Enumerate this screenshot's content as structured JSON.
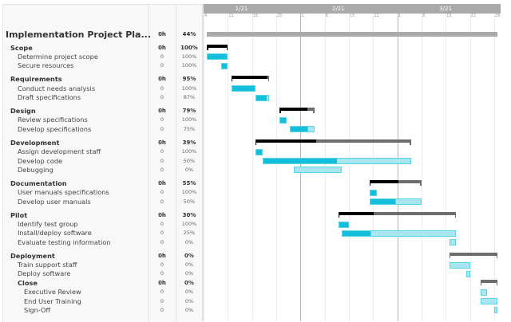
{
  "timeline": {
    "start": "2021-01-04",
    "months": [
      {
        "label": "1/21",
        "date": "2021-01-15"
      },
      {
        "label": "2/21",
        "date": "2021-02-12"
      },
      {
        "label": "3/21",
        "date": "2021-03-15"
      }
    ],
    "month_starts": [
      "2021-02-01",
      "2021-03-01"
    ],
    "days": [
      {
        "label": "4",
        "date": "2021-01-04"
      },
      {
        "label": "11",
        "date": "2021-01-11"
      },
      {
        "label": "18",
        "date": "2021-01-18"
      },
      {
        "label": "25",
        "date": "2021-01-25"
      },
      {
        "label": "1",
        "date": "2021-02-01"
      },
      {
        "label": "8",
        "date": "2021-02-08"
      },
      {
        "label": "15",
        "date": "2021-02-15"
      },
      {
        "label": "22",
        "date": "2021-02-22"
      },
      {
        "label": "1",
        "date": "2021-03-01"
      },
      {
        "label": "8",
        "date": "2021-03-08"
      },
      {
        "label": "15",
        "date": "2021-03-15"
      },
      {
        "label": "22",
        "date": "2021-03-22"
      },
      {
        "label": "29",
        "date": "2021-03-29"
      }
    ]
  },
  "colors": {
    "project": "#aaaaaa",
    "summary_done": "#000000",
    "summary_left": "#6d6d6d",
    "task_done": "#14bfdb",
    "task_left": "#a8e6f0",
    "task_border": "#5fd3e6"
  },
  "tasks": [
    {
      "name": "Implementation Project Pla...",
      "level": 0,
      "hours": "0h",
      "percent": "44%",
      "progress": 44,
      "start": "2021-01-05",
      "end": "2021-03-30"
    },
    {
      "name": "Scope",
      "level": 1,
      "hours": "0h",
      "percent": "100%",
      "progress": 100,
      "start": "2021-01-05",
      "end": "2021-01-11"
    },
    {
      "name": "Determine project scope",
      "level": 2,
      "hours": "0",
      "percent": "100%",
      "progress": 100,
      "start": "2021-01-05",
      "end": "2021-01-11"
    },
    {
      "name": "Secure resources",
      "level": 2,
      "hours": "0",
      "percent": "100%",
      "progress": 100,
      "start": "2021-01-09",
      "end": "2021-01-11"
    },
    {
      "name": "Requirements",
      "level": 1,
      "hours": "0h",
      "percent": "95%",
      "progress": 95,
      "start": "2021-01-12",
      "end": "2021-01-23"
    },
    {
      "name": "Conduct needs analysis",
      "level": 2,
      "hours": "0",
      "percent": "100%",
      "progress": 100,
      "start": "2021-01-12",
      "end": "2021-01-19"
    },
    {
      "name": "Draft specifications",
      "level": 2,
      "hours": "0",
      "percent": "87%",
      "progress": 87,
      "start": "2021-01-19",
      "end": "2021-01-23"
    },
    {
      "name": "Design",
      "level": 1,
      "hours": "0h",
      "percent": "79%",
      "progress": 79,
      "start": "2021-01-26",
      "end": "2021-02-05"
    },
    {
      "name": "Review specifications",
      "level": 2,
      "hours": "0",
      "percent": "100%",
      "progress": 100,
      "start": "2021-01-26",
      "end": "2021-01-28"
    },
    {
      "name": "Develop specifications",
      "level": 2,
      "hours": "0",
      "percent": "75%",
      "progress": 75,
      "start": "2021-01-29",
      "end": "2021-02-05"
    },
    {
      "name": "Development",
      "level": 1,
      "hours": "0h",
      "percent": "39%",
      "progress": 39,
      "start": "2021-01-19",
      "end": "2021-03-05"
    },
    {
      "name": "Assign development staff",
      "level": 2,
      "hours": "0",
      "percent": "100%",
      "progress": 100,
      "start": "2021-01-19",
      "end": "2021-01-21"
    },
    {
      "name": "Develop code",
      "level": 2,
      "hours": "0",
      "percent": "50%",
      "progress": 50,
      "start": "2021-01-21",
      "end": "2021-03-05"
    },
    {
      "name": "Debugging",
      "level": 2,
      "hours": "0",
      "percent": "0%",
      "progress": 0,
      "start": "2021-01-30",
      "end": "2021-02-13"
    },
    {
      "name": "Documentation",
      "level": 1,
      "hours": "0h",
      "percent": "55%",
      "progress": 55,
      "start": "2021-02-21",
      "end": "2021-03-08"
    },
    {
      "name": "User manuals specifications",
      "level": 2,
      "hours": "0",
      "percent": "100%",
      "progress": 100,
      "start": "2021-02-21",
      "end": "2021-02-23"
    },
    {
      "name": "Develop user manuals",
      "level": 2,
      "hours": "0",
      "percent": "50%",
      "progress": 50,
      "start": "2021-02-21",
      "end": "2021-03-08"
    },
    {
      "name": "Pilot",
      "level": 1,
      "hours": "0h",
      "percent": "30%",
      "progress": 30,
      "start": "2021-02-12",
      "end": "2021-03-18"
    },
    {
      "name": "Identify test group",
      "level": 2,
      "hours": "0",
      "percent": "100%",
      "progress": 100,
      "start": "2021-02-12",
      "end": "2021-02-15"
    },
    {
      "name": "Install/deploy software",
      "level": 2,
      "hours": "0",
      "percent": "25%",
      "progress": 25,
      "start": "2021-02-13",
      "end": "2021-03-18"
    },
    {
      "name": "Evaluate testing information",
      "level": 2,
      "hours": "0",
      "percent": "0%",
      "progress": 0,
      "start": "2021-03-16",
      "end": "2021-03-18"
    },
    {
      "name": "Deployment",
      "level": 1,
      "hours": "0h",
      "percent": "0%",
      "progress": 0,
      "start": "2021-03-16",
      "end": "2021-03-30"
    },
    {
      "name": "Train support staff",
      "level": 2,
      "hours": "0",
      "percent": "0%",
      "progress": 0,
      "start": "2021-03-16",
      "end": "2021-03-22"
    },
    {
      "name": "Deploy software",
      "level": 2,
      "hours": "0",
      "percent": "0%",
      "progress": 0,
      "start": "2021-03-21",
      "end": "2021-03-22"
    },
    {
      "name": "Close",
      "level": 15,
      "hours": "0h",
      "percent": "0%",
      "progress": 0,
      "start": "2021-03-25",
      "end": "2021-03-30"
    },
    {
      "name": "Executive Review",
      "level": 3,
      "hours": "0",
      "percent": "0%",
      "progress": 0,
      "start": "2021-03-25",
      "end": "2021-03-27"
    },
    {
      "name": "End User Training",
      "level": 3,
      "hours": "0",
      "percent": "0%",
      "progress": 0,
      "start": "2021-03-25",
      "end": "2021-03-30"
    },
    {
      "name": "Sign-Off",
      "level": 3,
      "hours": "0",
      "percent": "0%",
      "progress": 0,
      "start": "2021-03-29",
      "end": "2021-03-30"
    }
  ]
}
